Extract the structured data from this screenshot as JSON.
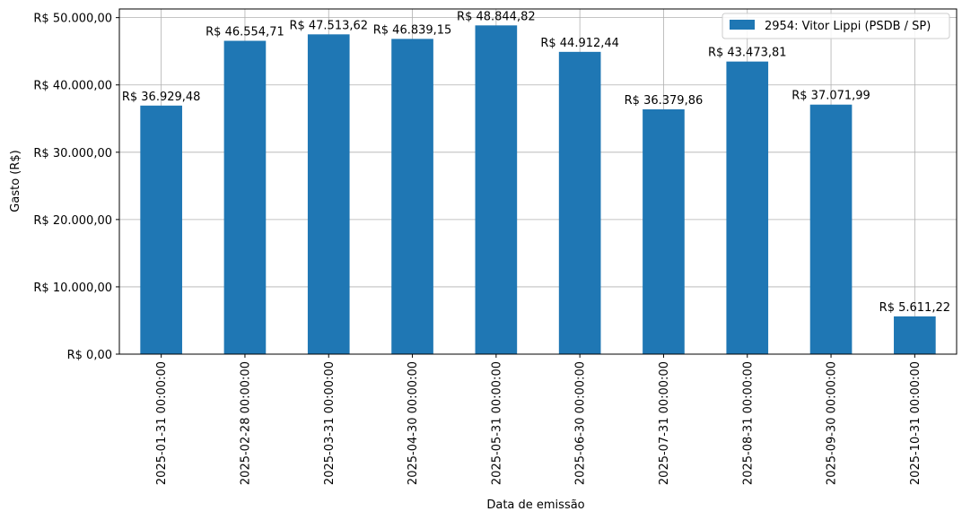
{
  "chart_data": {
    "type": "bar",
    "xlabel": "Data de emissão",
    "ylabel": "Gasto (R$)",
    "categories": [
      "2025-01-31 00:00:00",
      "2025-02-28 00:00:00",
      "2025-03-31 00:00:00",
      "2025-04-30 00:00:00",
      "2025-05-31 00:00:00",
      "2025-06-30 00:00:00",
      "2025-07-31 00:00:00",
      "2025-08-31 00:00:00",
      "2025-09-30 00:00:00",
      "2025-10-31 00:00:00"
    ],
    "series": [
      {
        "name": "2954: Vitor Lippi (PSDB / SP)",
        "color": "#1f77b4",
        "values": [
          36929.48,
          46554.71,
          47513.62,
          46839.15,
          48844.82,
          44912.44,
          36379.86,
          43473.81,
          37071.99,
          5611.22
        ],
        "labels": [
          "R$ 36.929,48",
          "R$ 46.554,71",
          "R$ 47.513,62",
          "R$ 46.839,15",
          "R$ 48.844,82",
          "R$ 44.912,44",
          "R$ 36.379,86",
          "R$ 43.473,81",
          "R$ 37.071,99",
          "R$ 5.611,22"
        ]
      }
    ],
    "ylim": [
      0,
      51286
    ],
    "yticks": [
      0,
      10000,
      20000,
      30000,
      40000,
      50000
    ],
    "ytick_labels": [
      "R$ 0,00",
      "R$ 10.000,00",
      "R$ 20.000,00",
      "R$ 30.000,00",
      "R$ 40.000,00",
      "R$ 50.000,00"
    ],
    "grid": true,
    "legend_position": "top-right"
  }
}
